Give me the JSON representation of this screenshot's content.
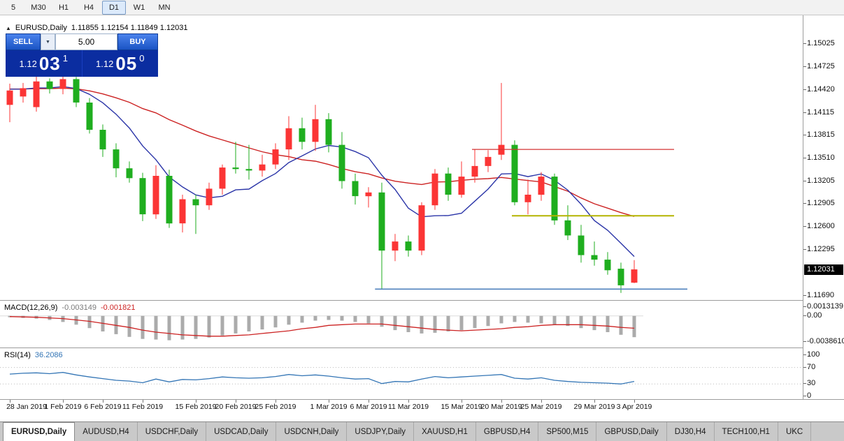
{
  "toolbar": {
    "timeframes": [
      "5",
      "M30",
      "H1",
      "H4",
      "D1",
      "W1",
      "MN"
    ],
    "active_timeframe": "D1"
  },
  "icons": {
    "chart_icon": "▲",
    "dropdown_arrow": "▼"
  },
  "chart_header": {
    "symbol": "EURUSD,Daily",
    "ohlc": "1.11855 1.12154 1.11849 1.12031"
  },
  "trade_panel": {
    "sell_label": "SELL",
    "buy_label": "BUY",
    "volume": "5.00",
    "sell_price": {
      "prefix": "1.12",
      "big": "03",
      "sup": "1"
    },
    "buy_price": {
      "prefix": "1.12",
      "big": "05",
      "sup": "0"
    }
  },
  "price_axis": {
    "labels": [
      "1.15025",
      "1.14725",
      "1.14420",
      "1.14115",
      "1.13815",
      "1.13510",
      "1.13205",
      "1.12905",
      "1.12600",
      "1.12295",
      "1.11690"
    ],
    "current_price": "1.12031"
  },
  "macd_panel": {
    "title": "MACD(12,26,9)",
    "main_value": "-0.003149",
    "signal_value": "-0.001821",
    "axis_labels": [
      "0.0013139",
      "0.00",
      "-0.0038610"
    ]
  },
  "rsi_panel": {
    "title": "RSI(14)",
    "value": "36.2086",
    "axis_labels": [
      "100",
      "70",
      "30",
      "0"
    ]
  },
  "tabs": [
    "EURUSD,Daily",
    "AUDUSD,H4",
    "USDCHF,Daily",
    "USDCAD,Daily",
    "USDCNH,Daily",
    "USDJPY,Daily",
    "XAUUSD,H1",
    "GBPUSD,H4",
    "SP500,M15",
    "GBPUSD,Daily",
    "DJ30,H4",
    "TECH100,H1",
    "UKC"
  ],
  "active_tab": "EURUSD,Daily",
  "colors": {
    "up_candle": "#fb3535",
    "down_candle": "#1fae1f",
    "ma_fast": "#2b35a8",
    "ma_slow": "#cc2222",
    "macd_hist": "#ababab",
    "macd_signal": "#cc2222",
    "rsi_line": "#3375b5"
  },
  "chart_data": {
    "type": "candlestick",
    "symbol": "EURUSD",
    "period": "Daily",
    "price_range": {
      "top": 1.15395,
      "bottom": 1.11625
    },
    "candles": [
      [
        1.1421,
        1.1449,
        1.1398,
        1.144
      ],
      [
        1.1432,
        1.145,
        1.1424,
        1.1443
      ],
      [
        1.1418,
        1.146,
        1.1412,
        1.1452
      ],
      [
        1.1452,
        1.1456,
        1.1436,
        1.1442
      ],
      [
        1.1442,
        1.1462,
        1.1435,
        1.1455
      ],
      [
        1.1455,
        1.1458,
        1.1418,
        1.1424
      ],
      [
        1.1424,
        1.143,
        1.1383,
        1.1388
      ],
      [
        1.1388,
        1.1395,
        1.1352,
        1.1362
      ],
      [
        1.1362,
        1.137,
        1.1325,
        1.1337
      ],
      [
        1.1337,
        1.1346,
        1.1318,
        1.1324
      ],
      [
        1.1324,
        1.1331,
        1.1267,
        1.1276
      ],
      [
        1.1276,
        1.1341,
        1.127,
        1.1327
      ],
      [
        1.1327,
        1.1335,
        1.1258,
        1.1264
      ],
      [
        1.1264,
        1.1302,
        1.1252,
        1.1296
      ],
      [
        1.1296,
        1.1302,
        1.125,
        1.1288
      ],
      [
        1.1288,
        1.1318,
        1.1282,
        1.131
      ],
      [
        1.131,
        1.1342,
        1.1302,
        1.1338
      ],
      [
        1.1338,
        1.1372,
        1.133,
        1.1336
      ],
      [
        1.1336,
        1.1368,
        1.1322,
        1.1334
      ],
      [
        1.1334,
        1.1355,
        1.1326,
        1.1342
      ],
      [
        1.1342,
        1.137,
        1.1336,
        1.1362
      ],
      [
        1.1362,
        1.1406,
        1.1348,
        1.139
      ],
      [
        1.139,
        1.1404,
        1.1362,
        1.1372
      ],
      [
        1.1372,
        1.1421,
        1.136,
        1.1402
      ],
      [
        1.1402,
        1.141,
        1.1358,
        1.1368
      ],
      [
        1.1368,
        1.1385,
        1.131,
        1.132
      ],
      [
        1.132,
        1.133,
        1.1289,
        1.13
      ],
      [
        1.13,
        1.1312,
        1.1285,
        1.1305
      ],
      [
        1.1305,
        1.1318,
        1.1177,
        1.1228
      ],
      [
        1.1228,
        1.125,
        1.1214,
        1.124
      ],
      [
        1.124,
        1.1248,
        1.122,
        1.1228
      ],
      [
        1.1228,
        1.1292,
        1.1222,
        1.1288
      ],
      [
        1.1288,
        1.1336,
        1.1282,
        1.133
      ],
      [
        1.133,
        1.1338,
        1.1294,
        1.1302
      ],
      [
        1.1302,
        1.1346,
        1.1298,
        1.1326
      ],
      [
        1.1326,
        1.1362,
        1.1318,
        1.134
      ],
      [
        1.134,
        1.1361,
        1.1332,
        1.1352
      ],
      [
        1.1355,
        1.145,
        1.1348,
        1.1368
      ],
      [
        1.1368,
        1.1374,
        1.1288,
        1.1292
      ],
      [
        1.1292,
        1.1322,
        1.1276,
        1.1302
      ],
      [
        1.1302,
        1.1332,
        1.1294,
        1.1326
      ],
      [
        1.1326,
        1.133,
        1.1262,
        1.1268
      ],
      [
        1.1268,
        1.1288,
        1.1242,
        1.1248
      ],
      [
        1.1248,
        1.1262,
        1.1212,
        1.1222
      ],
      [
        1.1222,
        1.124,
        1.1208,
        1.1216
      ],
      [
        1.1216,
        1.1226,
        1.1196,
        1.1202
      ],
      [
        1.1204,
        1.1212,
        1.1172,
        1.1182
      ],
      [
        1.11855,
        1.12154,
        1.11849,
        1.12031
      ]
    ],
    "time_labels": [
      {
        "i": 0,
        "t": "28 Jan 2019"
      },
      {
        "i": 4,
        "t": "1 Feb 2019"
      },
      {
        "i": 7,
        "t": "6 Feb 2019"
      },
      {
        "i": 10,
        "t": "11 Feb 2019"
      },
      {
        "i": 14,
        "t": "15 Feb 2019"
      },
      {
        "i": 17,
        "t": "20 Feb 2019"
      },
      {
        "i": 20,
        "t": "25 Feb 2019"
      },
      {
        "i": 24,
        "t": "1 Mar 2019"
      },
      {
        "i": 27,
        "t": "6 Mar 2019"
      },
      {
        "i": 30,
        "t": "11 Mar 2019"
      },
      {
        "i": 34,
        "t": "15 Mar 2019"
      },
      {
        "i": 37,
        "t": "20 Mar 2019"
      },
      {
        "i": 40,
        "t": "25 Mar 2019"
      },
      {
        "i": 44,
        "t": "29 Mar 2019"
      },
      {
        "i": 47,
        "t": "3 Apr 2019"
      }
    ],
    "ma_fast": {
      "period": 7,
      "seed": 1.1442
    },
    "ma_slow": {
      "period": 20,
      "seed": 1.1442
    },
    "hlines": [
      {
        "name": "resistance-line-red",
        "price": 1.1362,
        "from": 35,
        "to": 50,
        "color": "#d43333",
        "width": 1.2
      },
      {
        "name": "support-line-yellow",
        "price": 1.1274,
        "from": 38,
        "to": 50,
        "color": "#b3b300",
        "width": 2
      },
      {
        "name": "support-line-blue",
        "price": 1.1177,
        "from": 27.7,
        "to": 51,
        "color": "#4f81bd",
        "width": 1.6
      }
    ],
    "macd": {
      "range": {
        "top": 0.00224,
        "bottom": -0.00467
      },
      "histogram": [
        -0.0002,
        -0.0003,
        -0.0004,
        -0.0006,
        -0.0009,
        -0.0013,
        -0.0018,
        -0.0023,
        -0.0027,
        -0.0031,
        -0.0034,
        -0.0035,
        -0.0036,
        -0.0035,
        -0.0034,
        -0.0032,
        -0.0029,
        -0.0026,
        -0.0023,
        -0.002,
        -0.0017,
        -0.0013,
        -0.001,
        -0.0007,
        -0.0006,
        -0.0007,
        -0.0009,
        -0.0011,
        -0.0016,
        -0.0021,
        -0.0024,
        -0.0026,
        -0.0025,
        -0.0023,
        -0.0021,
        -0.0018,
        -0.0015,
        -0.0011,
        -0.0009,
        -0.001,
        -0.0011,
        -0.0013,
        -0.0015,
        -0.0018,
        -0.0021,
        -0.0024,
        -0.0028,
        -0.003149
      ],
      "signal": [
        -0.0001,
        -0.00015,
        -0.0002,
        -0.0003,
        -0.0004,
        -0.0006,
        -0.0008,
        -0.0011,
        -0.0014,
        -0.0017,
        -0.0021,
        -0.0024,
        -0.0026,
        -0.0028,
        -0.0029,
        -0.003,
        -0.003,
        -0.0029,
        -0.0028,
        -0.0026,
        -0.0024,
        -0.0022,
        -0.0019,
        -0.0017,
        -0.0014,
        -0.0013,
        -0.0012,
        -0.0012,
        -0.0012,
        -0.0014,
        -0.0016,
        -0.0018,
        -0.002,
        -0.0021,
        -0.0022,
        -0.0021,
        -0.002,
        -0.0019,
        -0.0017,
        -0.0016,
        -0.0014,
        -0.0013,
        -0.0013,
        -0.0013,
        -0.0014,
        -0.0015,
        -0.0017,
        -0.001821
      ]
    },
    "rsi": {
      "range": {
        "top": 116.7,
        "bottom": -6.7
      },
      "levels": [
        70,
        30
      ],
      "values": [
        54,
        56,
        57,
        55,
        58,
        52,
        47,
        43,
        39,
        37,
        33,
        42,
        35,
        41,
        40,
        43,
        47,
        45,
        44,
        45,
        48,
        53,
        50,
        52,
        49,
        45,
        42,
        43,
        31,
        36,
        35,
        42,
        48,
        45,
        47,
        49,
        51,
        53,
        44,
        42,
        45,
        39,
        36,
        34,
        33,
        32,
        30,
        36.2
      ]
    }
  }
}
